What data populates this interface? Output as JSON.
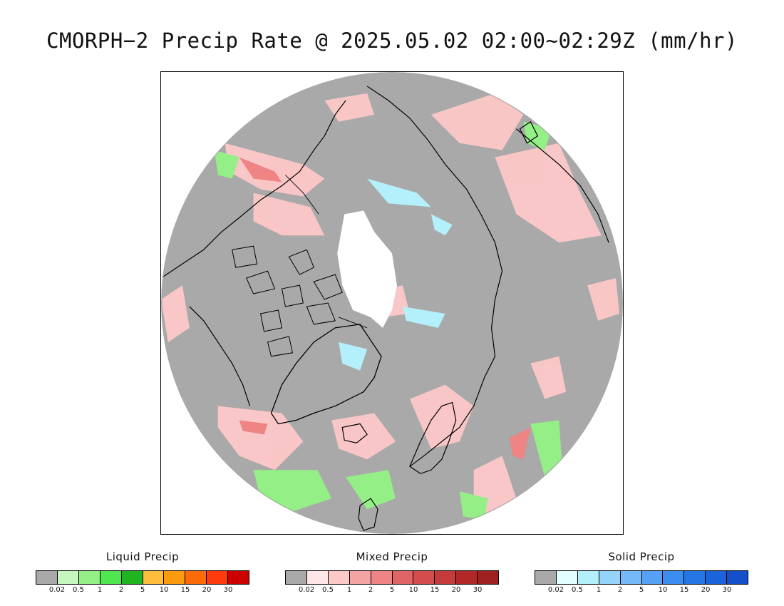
{
  "title": "CMORPH−2 Precip Rate @ 2025.05.02 02:00~02:29Z (mm/hr)",
  "map": {
    "background_gray": "#a9a9a9",
    "ice_white": "#ffffff",
    "coast_color": "#000000"
  },
  "legends": [
    {
      "id": "liquid",
      "title": "Liquid Precip",
      "colors": [
        "#a9a9a9",
        "#c6f7c0",
        "#94ef86",
        "#4fe64f",
        "#21b421",
        "#fdbd3d",
        "#fd9a0e",
        "#fd6a0a",
        "#fd3b0c",
        "#cd0000"
      ],
      "ticks": [
        "0.02",
        "0.5",
        "1",
        "2",
        "5",
        "10",
        "15",
        "20",
        "30"
      ]
    },
    {
      "id": "mixed",
      "title": "Mixed Precip",
      "colors": [
        "#a9a9a9",
        "#fee5e8",
        "#fdc8c8",
        "#f5a4a4",
        "#ee8484",
        "#e06464",
        "#d44c4c",
        "#c53a3a",
        "#b22828",
        "#9e2020"
      ],
      "ticks": [
        "0.02",
        "0.5",
        "1",
        "2",
        "5",
        "10",
        "15",
        "20",
        "30"
      ]
    },
    {
      "id": "solid",
      "title": "Solid Precip",
      "colors": [
        "#a9a9a9",
        "#e1fdfd",
        "#b4f0fc",
        "#94d4fb",
        "#75b9f8",
        "#55a2f4",
        "#3b8ef0",
        "#2676e6",
        "#1b63db",
        "#124fc8"
      ],
      "ticks": [
        "0.02",
        "0.5",
        "1",
        "2",
        "5",
        "10",
        "15",
        "20",
        "30"
      ]
    }
  ]
}
